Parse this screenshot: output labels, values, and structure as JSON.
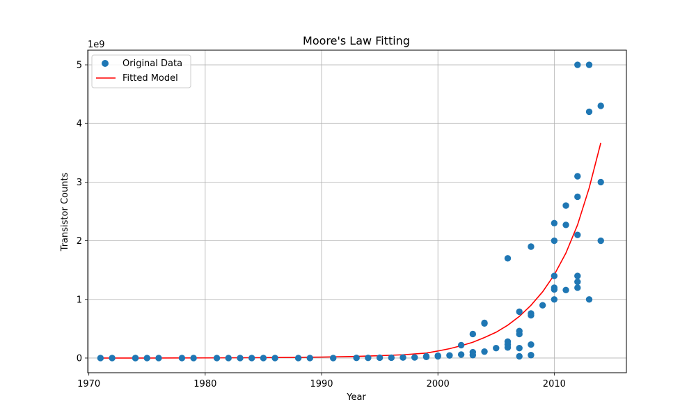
{
  "chart_data": {
    "type": "scatter",
    "title": "Moore's Law Fitting",
    "xlabel": "Year",
    "ylabel": "Transistor Counts",
    "y_scale_label": "1e9",
    "xlim": [
      1969.9,
      2016.2
    ],
    "ylim": [
      -0.25,
      5.25
    ],
    "x_ticks": [
      1970,
      1980,
      1990,
      2000,
      2010
    ],
    "y_ticks": [
      0,
      1,
      2,
      3,
      4,
      5
    ],
    "grid": true,
    "legend": {
      "position": "top-left",
      "entries": [
        "Original Data",
        "Fitted Model"
      ]
    },
    "colors": {
      "scatter": "#1f77b4",
      "fit": "#ff0000"
    },
    "series": [
      {
        "name": "Original Data",
        "kind": "scatter",
        "points": [
          [
            1971,
            0.0
          ],
          [
            1972,
            0.0
          ],
          [
            1974,
            0.0
          ],
          [
            1974,
            0.0
          ],
          [
            1975,
            0.0
          ],
          [
            1976,
            0.0
          ],
          [
            1978,
            0.0
          ],
          [
            1979,
            0.0
          ],
          [
            1981,
            0.0
          ],
          [
            1982,
            0.0
          ],
          [
            1983,
            0.0
          ],
          [
            1984,
            0.0
          ],
          [
            1985,
            0.0
          ],
          [
            1986,
            0.0
          ],
          [
            1988,
            0.0
          ],
          [
            1989,
            0.0
          ],
          [
            1991,
            0.0
          ],
          [
            1993,
            0.003
          ],
          [
            1994,
            0.003
          ],
          [
            1995,
            0.006
          ],
          [
            1996,
            0.006
          ],
          [
            1997,
            0.009
          ],
          [
            1998,
            0.01
          ],
          [
            1999,
            0.02
          ],
          [
            1999,
            0.03
          ],
          [
            2000,
            0.03
          ],
          [
            2000,
            0.04
          ],
          [
            2001,
            0.045
          ],
          [
            2002,
            0.06
          ],
          [
            2002,
            0.22
          ],
          [
            2003,
            0.05
          ],
          [
            2003,
            0.1
          ],
          [
            2003,
            0.41
          ],
          [
            2004,
            0.11
          ],
          [
            2004,
            0.59
          ],
          [
            2004,
            0.6
          ],
          [
            2005,
            0.17
          ],
          [
            2006,
            0.18
          ],
          [
            2006,
            0.23
          ],
          [
            2006,
            0.28
          ],
          [
            2006,
            1.7
          ],
          [
            2007,
            0.03
          ],
          [
            2007,
            0.17
          ],
          [
            2007,
            0.41
          ],
          [
            2007,
            0.46
          ],
          [
            2007,
            0.79
          ],
          [
            2008,
            0.05
          ],
          [
            2008,
            0.23
          ],
          [
            2008,
            0.73
          ],
          [
            2008,
            0.76
          ],
          [
            2008,
            1.9
          ],
          [
            2009,
            0.9
          ],
          [
            2010,
            1.0
          ],
          [
            2010,
            1.17
          ],
          [
            2010,
            1.2
          ],
          [
            2010,
            1.4
          ],
          [
            2010,
            2.0
          ],
          [
            2010,
            2.3
          ],
          [
            2011,
            1.16
          ],
          [
            2011,
            2.27
          ],
          [
            2011,
            2.6
          ],
          [
            2012,
            1.2
          ],
          [
            2012,
            1.3
          ],
          [
            2012,
            1.4
          ],
          [
            2012,
            2.1
          ],
          [
            2012,
            2.75
          ],
          [
            2012,
            3.1
          ],
          [
            2012,
            5.0
          ],
          [
            2013,
            1.0
          ],
          [
            2013,
            4.2
          ],
          [
            2013,
            5.0
          ],
          [
            2014,
            2.0
          ],
          [
            2014,
            3.0
          ],
          [
            2014,
            4.3
          ]
        ]
      },
      {
        "name": "Fitted Model",
        "kind": "line",
        "points": [
          [
            1971,
            0.0002
          ],
          [
            1975,
            0.0008
          ],
          [
            1980,
            0.0025
          ],
          [
            1985,
            0.007
          ],
          [
            1990,
            0.017
          ],
          [
            1993,
            0.028
          ],
          [
            1995,
            0.04
          ],
          [
            1997,
            0.056
          ],
          [
            1999,
            0.085
          ],
          [
            2000,
            0.12
          ],
          [
            2001,
            0.16
          ],
          [
            2002,
            0.21
          ],
          [
            2003,
            0.27
          ],
          [
            2004,
            0.35
          ],
          [
            2005,
            0.44
          ],
          [
            2006,
            0.56
          ],
          [
            2007,
            0.71
          ],
          [
            2008,
            0.9
          ],
          [
            2009,
            1.13
          ],
          [
            2010,
            1.42
          ],
          [
            2011,
            1.79
          ],
          [
            2012,
            2.27
          ],
          [
            2013,
            2.9
          ],
          [
            2014,
            3.67
          ]
        ]
      }
    ]
  }
}
